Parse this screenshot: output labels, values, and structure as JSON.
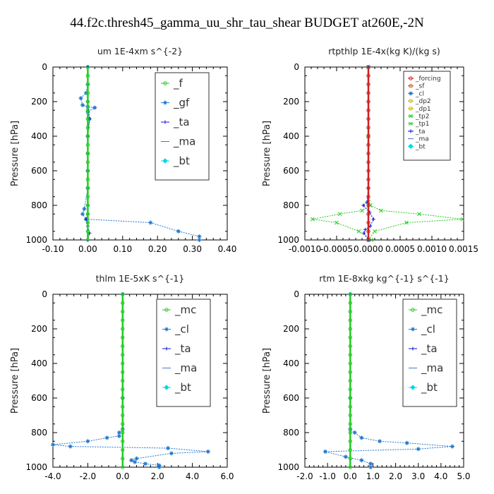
{
  "title": "44.f2c.thresh45_gamma_uu_shr_tau_shear  BUDGET at260E,-2N",
  "colors": {
    "forcing": "#cc2222",
    "sf": "#cc5500",
    "cl": "#1f77d0",
    "gf": "#1f77d0",
    "ta": "#1010dd",
    "ma": "#4477cc",
    "bt": "#00d8e8",
    "f": "#22cc22",
    "mc": "#22cc22",
    "tp": "#22cc22",
    "dp": "#c8b400"
  },
  "chart_data": [
    {
      "type": "line",
      "title": "um  1E-4xm s^{-2}",
      "ylabel": "Pressure [hPa]",
      "xlim": [
        -0.1,
        0.4
      ],
      "ylim": [
        1000,
        0
      ],
      "xticks": [
        "-0.10",
        "0.00",
        "0.10",
        "0.20",
        "0.30",
        "0.40"
      ],
      "yticks": [
        "0",
        "200",
        "400",
        "600",
        "800",
        "1000"
      ],
      "legend": [
        "_f",
        "_gf",
        "_ta",
        "_ma",
        "_bt"
      ],
      "series": [
        {
          "name": "_gf",
          "color": "cl",
          "marker": "star",
          "x": [
            0.0,
            0.0,
            -0.005,
            -0.02,
            -0.015,
            0.0,
            0.02,
            0.0,
            0.005,
            0.0,
            0.0,
            0.0,
            0.0,
            -0.01,
            -0.015,
            -0.005,
            0.18,
            0.26,
            0.32,
            0.32
          ],
          "y": [
            0,
            100,
            150,
            180,
            220,
            230,
            235,
            260,
            300,
            400,
            500,
            600,
            700,
            820,
            850,
            880,
            900,
            950,
            980,
            1000
          ]
        },
        {
          "name": "_ta",
          "color": "ta",
          "marker": "plus",
          "x": [
            0.0,
            0.0,
            0.005,
            0.0,
            0.0,
            0.0,
            0.0,
            -0.005,
            0.0,
            0.005,
            0.0
          ],
          "y": [
            0,
            200,
            300,
            400,
            600,
            800,
            850,
            880,
            920,
            960,
            1000
          ]
        },
        {
          "name": "_f",
          "color": "f",
          "marker": "circle",
          "x": [
            0.0,
            0.0,
            0.0,
            0.0,
            0.0,
            0.0,
            0.0,
            0.0,
            0.0,
            0.0,
            0.0,
            0.0,
            0.0,
            0.0,
            0.0,
            0.0,
            0.0,
            0.0,
            0.0,
            0.0,
            0.0
          ],
          "y": [
            0,
            50,
            100,
            150,
            200,
            250,
            300,
            350,
            400,
            450,
            500,
            550,
            600,
            650,
            700,
            750,
            800,
            850,
            900,
            950,
            1000
          ]
        }
      ]
    },
    {
      "type": "line",
      "title": "rtpthlp  1E-4x(kg K)/(kg s)",
      "ylabel": "Pressure [hPa]",
      "xlim": [
        -0.001,
        0.0015
      ],
      "ylim": [
        1000,
        0
      ],
      "xticks": [
        "-0.0010",
        "-0.0005",
        "0.0000",
        "0.0005",
        "0.0010",
        "0.0015"
      ],
      "yticks": [
        "0",
        "200",
        "400",
        "600",
        "800",
        "1000"
      ],
      "legend": [
        "_forcing",
        "_sf",
        "_cl",
        "_dp2",
        "_dp1",
        "_tp2",
        "_tp1",
        "_ta",
        "_ma",
        "_bt"
      ],
      "series": [
        {
          "name": "_tp1",
          "color": "tp",
          "marker": "cross",
          "x": [
            0.0,
            0.0,
            0.0,
            3e-05,
            -0.0001,
            -0.00045,
            -0.00088,
            -0.0005,
            -0.00015,
            5e-05
          ],
          "y": [
            0,
            400,
            780,
            800,
            830,
            850,
            880,
            900,
            950,
            1000
          ]
        },
        {
          "name": "_tp2",
          "color": "tp",
          "marker": "cross",
          "x": [
            0.0,
            0.0,
            0.0,
            3e-05,
            0.0002,
            0.0008,
            0.00148,
            0.0006,
            0.0001,
            0.0
          ],
          "y": [
            0,
            400,
            780,
            800,
            830,
            850,
            880,
            900,
            950,
            1000
          ]
        },
        {
          "name": "_ta",
          "color": "ta",
          "marker": "plus",
          "x": [
            0.0,
            0.0,
            -2e-05,
            -8e-05,
            2e-05,
            8e-05,
            3e-05,
            -5e-05,
            -7e-05,
            0.0
          ],
          "y": [
            0,
            700,
            780,
            800,
            840,
            880,
            920,
            940,
            960,
            1000
          ]
        },
        {
          "name": "_forcing",
          "color": "forcing",
          "marker": "circle",
          "x": [
            0.0,
            0.0,
            0.0,
            0.0,
            0.0,
            0.0,
            0.0,
            0.0,
            0.0,
            0.0,
            0.0,
            0.0,
            0.0,
            0.0,
            0.0,
            0.0,
            0.0,
            0.0,
            0.0,
            0.0,
            0.0
          ],
          "y": [
            0,
            50,
            100,
            150,
            200,
            250,
            300,
            350,
            400,
            450,
            500,
            550,
            600,
            650,
            700,
            750,
            800,
            850,
            900,
            950,
            1000
          ]
        }
      ]
    },
    {
      "type": "line",
      "title": "thlm  1E-5xK s^{-1}",
      "ylabel": "Pressure [hPa]",
      "xlim": [
        -4.0,
        6.0
      ],
      "ylim": [
        1000,
        0
      ],
      "xticks": [
        "-4.0",
        "-2.0",
        "0.0",
        "2.0",
        "4.0",
        "6.0"
      ],
      "yticks": [
        "0",
        "200",
        "400",
        "600",
        "800",
        "1000"
      ],
      "legend": [
        "_mc",
        "_cl",
        "_ta",
        "_ma",
        "_bt"
      ],
      "series": [
        {
          "name": "_cl",
          "color": "cl",
          "marker": "star",
          "x": [
            0.0,
            0.0,
            0.0,
            -0.2,
            -0.2,
            -0.9,
            -2.0,
            -4.0,
            -3.0,
            2.6,
            4.9,
            2.8,
            0.8,
            0.5,
            0.7,
            1.3,
            2.1,
            2.1
          ],
          "y": [
            0,
            600,
            780,
            800,
            820,
            830,
            850,
            870,
            880,
            890,
            910,
            920,
            950,
            960,
            970,
            980,
            990,
            1000
          ]
        },
        {
          "name": "_mc",
          "color": "mc",
          "marker": "circle",
          "x": [
            0.0,
            0.0,
            0.0,
            0.0,
            0.0,
            0.0,
            0.0,
            0.0,
            0.0,
            0.0,
            0.0,
            0.0,
            0.0,
            0.0,
            0.0,
            0.0,
            0.0,
            0.0,
            0.0,
            0.0,
            0.0
          ],
          "y": [
            0,
            50,
            100,
            150,
            200,
            250,
            300,
            350,
            400,
            450,
            500,
            550,
            600,
            650,
            700,
            750,
            800,
            850,
            900,
            950,
            1000
          ]
        }
      ]
    },
    {
      "type": "line",
      "title": "rtm  1E-8xkg kg^{-1} s^{-1}",
      "ylabel": "Pressure [hPa]",
      "xlim": [
        -2.0,
        5.0
      ],
      "ylim": [
        1000,
        0
      ],
      "xticks": [
        "-2.0",
        "-1.0",
        "0.0",
        "1.0",
        "2.0",
        "3.0",
        "4.0",
        "5.0"
      ],
      "yticks": [
        "0",
        "200",
        "400",
        "600",
        "800",
        "1000"
      ],
      "legend": [
        "_mc",
        "_cl",
        "_ta",
        "_ma",
        "_bt"
      ],
      "series": [
        {
          "name": "_cl",
          "color": "cl",
          "marker": "star",
          "x": [
            0.0,
            0.0,
            0.0,
            0.2,
            0.5,
            1.3,
            2.5,
            4.5,
            3.0,
            -1.1,
            -0.2,
            0.5,
            0.9,
            0.9
          ],
          "y": [
            0,
            600,
            780,
            800,
            830,
            850,
            860,
            880,
            895,
            910,
            940,
            960,
            980,
            1000
          ]
        },
        {
          "name": "_mc",
          "color": "mc",
          "marker": "circle",
          "x": [
            0.0,
            0.0,
            0.0,
            0.0,
            0.0,
            0.0,
            0.0,
            0.0,
            0.0,
            0.0,
            0.0,
            0.0,
            0.0,
            0.0,
            0.0,
            0.0,
            0.0,
            0.0,
            0.0,
            0.0,
            0.0
          ],
          "y": [
            0,
            50,
            100,
            150,
            200,
            250,
            300,
            350,
            400,
            450,
            500,
            550,
            600,
            650,
            700,
            750,
            800,
            850,
            900,
            950,
            1000
          ]
        }
      ]
    }
  ]
}
